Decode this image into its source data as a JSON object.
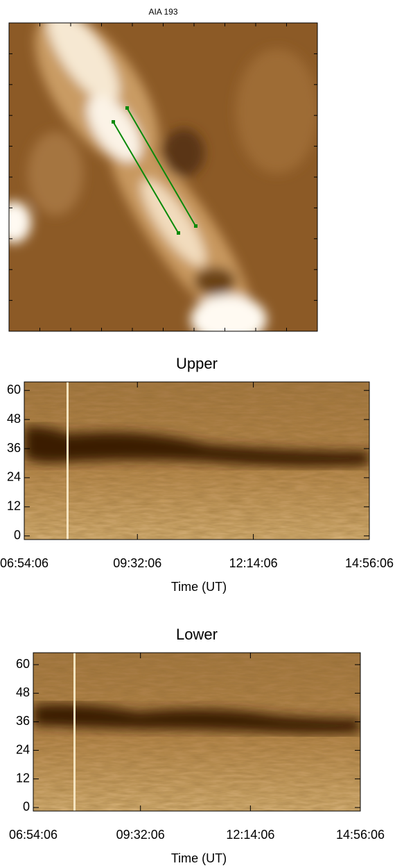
{
  "chart_data": [
    {
      "type": "image",
      "title": "AIA 193"
    },
    {
      "type": "time-distance",
      "title": "Upper",
      "xlabel": "Time (UT)",
      "xlim": [
        "06:54:06",
        "14:56:06"
      ],
      "xticks": [
        "06:54:06",
        "09:32:06",
        "12:14:06",
        "14:56:06"
      ],
      "ylim": [
        -1.5,
        63.5
      ],
      "yticks": [
        0,
        12,
        24,
        36,
        48,
        60
      ]
    },
    {
      "type": "time-distance",
      "title": "Lower",
      "xlabel": "Time (UT)",
      "xlim": [
        "06:54:06",
        "14:56:06"
      ],
      "xticks": [
        "06:54:06",
        "09:32:06",
        "12:14:06",
        "14:56:06"
      ],
      "ylim": [
        -1.5,
        65
      ],
      "yticks": [
        0,
        12,
        24,
        36,
        48,
        60
      ]
    }
  ]
}
